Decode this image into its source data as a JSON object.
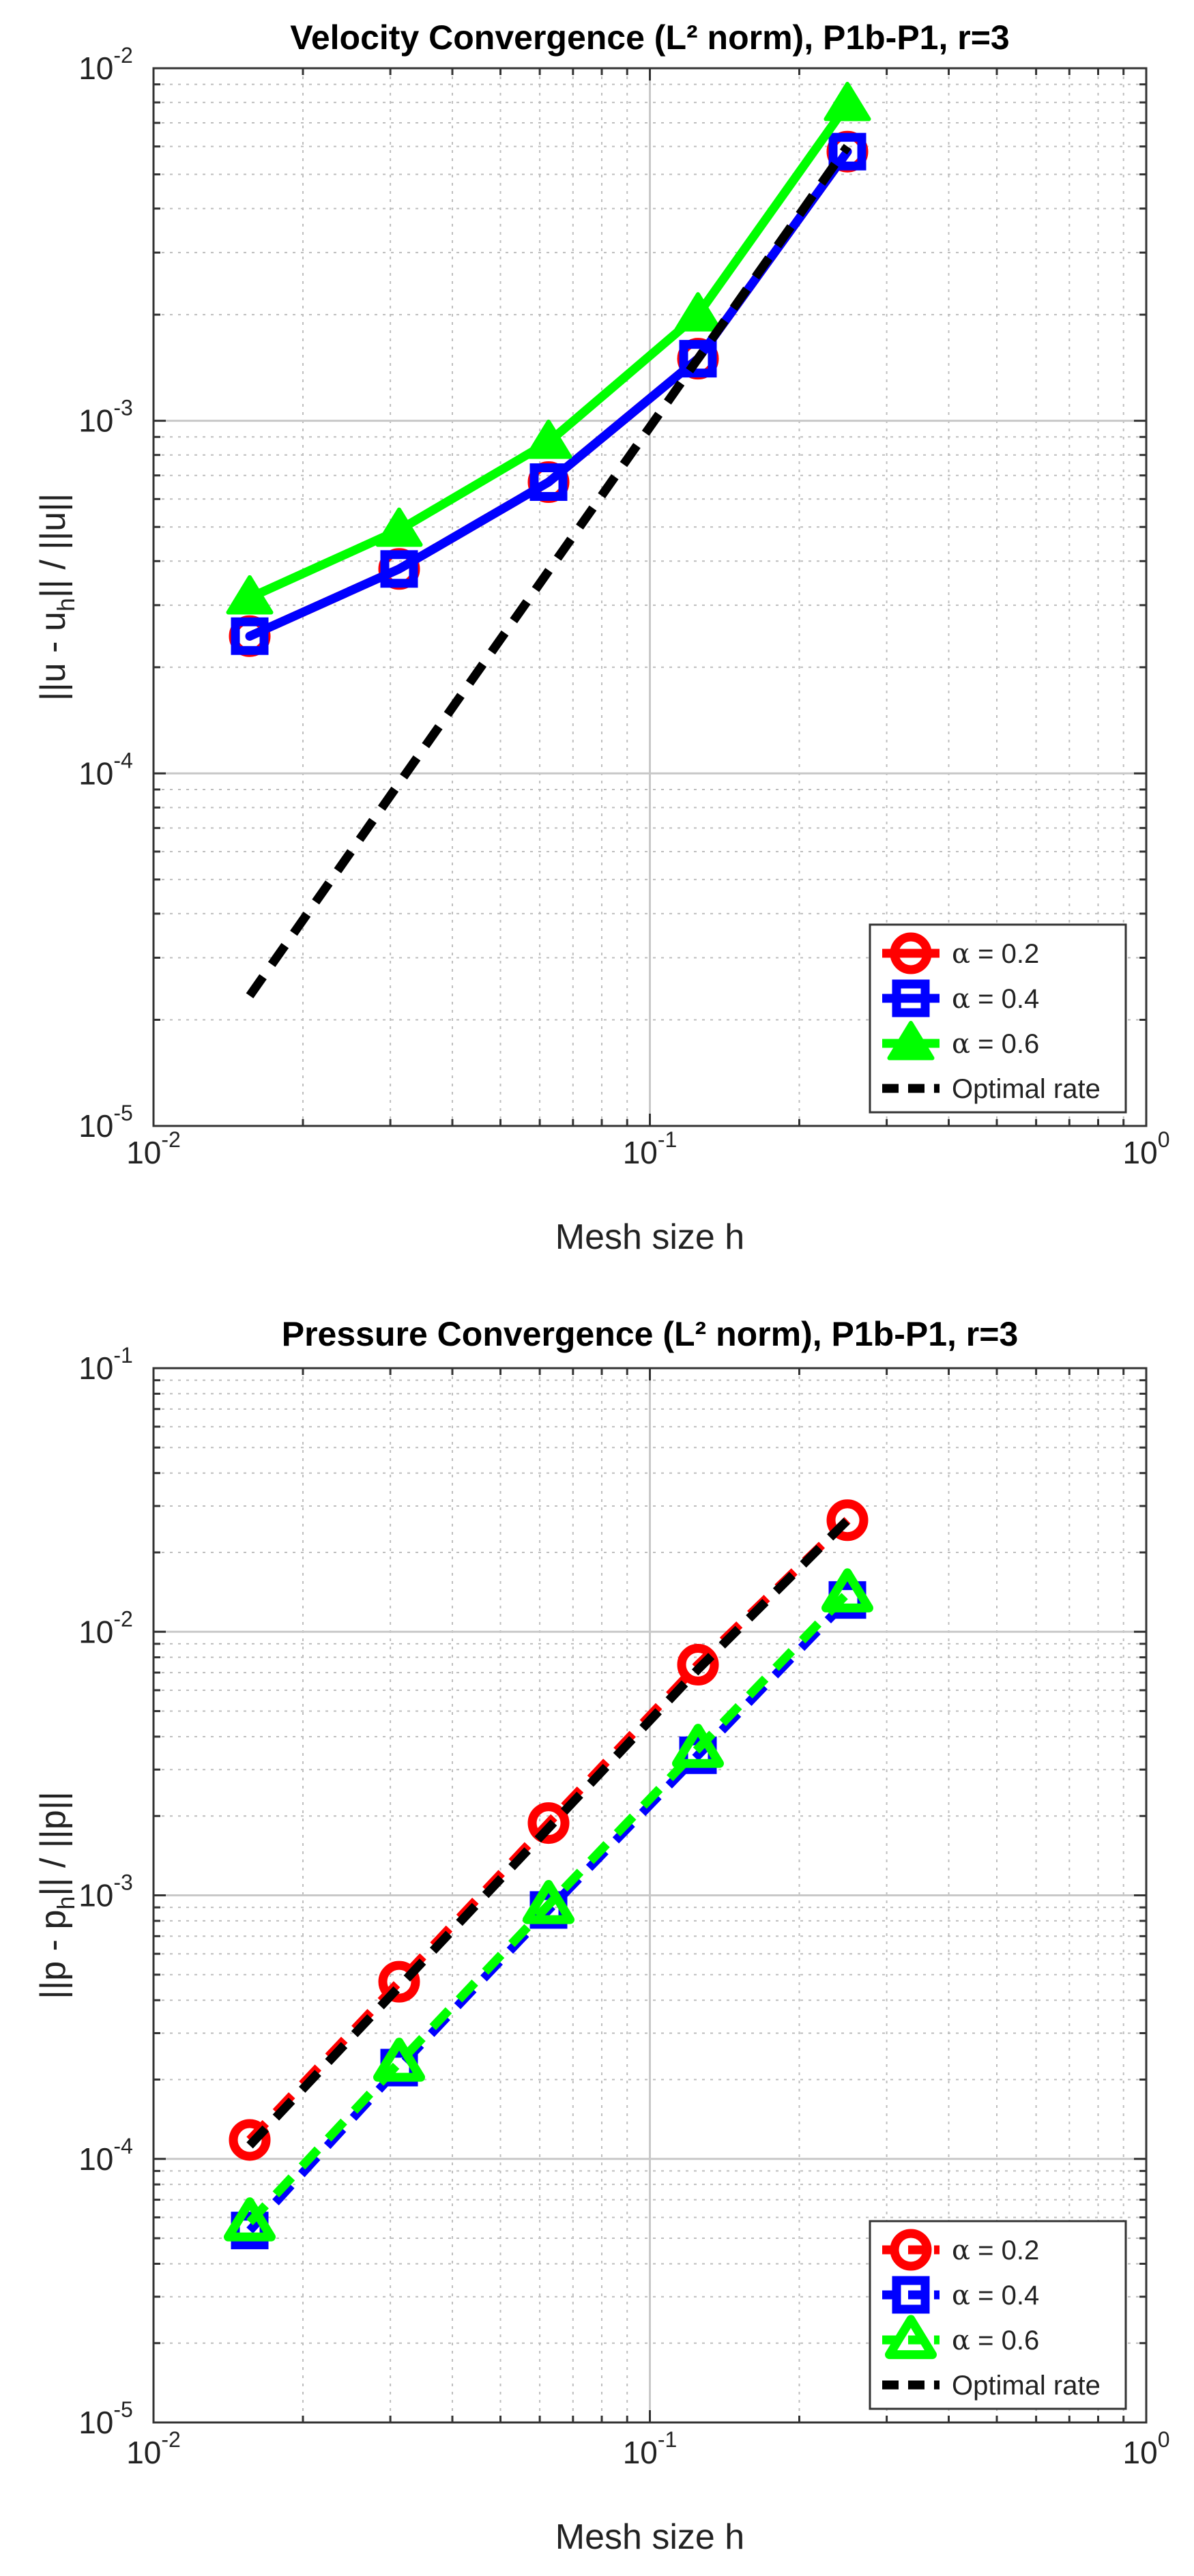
{
  "chart_data": [
    {
      "type": "line",
      "title": "Velocity Convergence (L² norm), P1b-P1, r=3",
      "xlabel": "Mesh size h",
      "ylabel": "||u - u_h|| / ||u||",
      "ylabel_parts": {
        "a": "||u - u",
        "sub": "h",
        "b": "|| / ||u||"
      },
      "xscale": "log",
      "yscale": "log",
      "xlim": [
        0.01,
        1
      ],
      "ylim": [
        1e-05,
        0.01
      ],
      "x_ticks": [
        {
          "base": "10",
          "exp": "-2"
        },
        {
          "base": "10",
          "exp": "-1"
        },
        {
          "base": "10",
          "exp": "0"
        }
      ],
      "y_ticks": [
        {
          "base": "10",
          "exp": "-5"
        },
        {
          "base": "10",
          "exp": "-4"
        },
        {
          "base": "10",
          "exp": "-3"
        },
        {
          "base": "10",
          "exp": "-2"
        }
      ],
      "grid": true,
      "legend_position": "bottom-right",
      "x": [
        0.015625,
        0.03125,
        0.0625,
        0.125,
        0.25
      ],
      "series": [
        {
          "name": "α = 0.2",
          "alpha_label": "α",
          "value_label": "= 0.2",
          "color": "#ff0000",
          "marker": "circle",
          "line": "solid",
          "values": [
            0.000245,
            0.00038,
            0.00067,
            0.0015,
            0.0058
          ]
        },
        {
          "name": "α = 0.4",
          "alpha_label": "α",
          "value_label": "= 0.4",
          "color": "#0000ff",
          "marker": "square",
          "line": "solid",
          "values": [
            0.000245,
            0.00038,
            0.00067,
            0.0015,
            0.0058
          ]
        },
        {
          "name": "α = 0.6",
          "alpha_label": "α",
          "value_label": "= 0.6",
          "color": "#00ff00",
          "marker": "triangle",
          "line": "solid",
          "filled": true,
          "values": [
            0.000315,
            0.00049,
            0.00087,
            0.002,
            0.0079
          ]
        },
        {
          "name": "Optimal rate",
          "alpha_label": "",
          "value_label": "Optimal rate",
          "color": "#000000",
          "marker": "none",
          "line": "dashed",
          "values": [
            2.34e-05,
            9.38e-05,
            0.000375,
            0.0015,
            0.006
          ]
        }
      ]
    },
    {
      "type": "line",
      "title": "Pressure  Convergence (L² norm), P1b-P1, r=3",
      "xlabel": "Mesh size h",
      "ylabel": "||p - p_h|| / ||p||",
      "ylabel_parts": {
        "a": "||p - p",
        "sub": "h",
        "b": "|| / ||p||"
      },
      "xscale": "log",
      "yscale": "log",
      "xlim": [
        0.01,
        1
      ],
      "ylim": [
        1e-05,
        0.1
      ],
      "x_ticks": [
        {
          "base": "10",
          "exp": "-2"
        },
        {
          "base": "10",
          "exp": "-1"
        },
        {
          "base": "10",
          "exp": "0"
        }
      ],
      "y_ticks": [
        {
          "base": "10",
          "exp": "-5"
        },
        {
          "base": "10",
          "exp": "-4"
        },
        {
          "base": "10",
          "exp": "-3"
        },
        {
          "base": "10",
          "exp": "-2"
        },
        {
          "base": "10",
          "exp": "-1"
        }
      ],
      "grid": true,
      "legend_position": "bottom-right",
      "x": [
        0.015625,
        0.03125,
        0.0625,
        0.125,
        0.25
      ],
      "series": [
        {
          "name": "α = 0.2",
          "alpha_label": "α",
          "value_label": "= 0.2",
          "color": "#ff0000",
          "marker": "circle",
          "line": "dashed",
          "values": [
            0.000118,
            0.00047,
            0.00188,
            0.0075,
            0.0265
          ]
        },
        {
          "name": "α = 0.4",
          "alpha_label": "α",
          "value_label": "= 0.4",
          "color": "#0000ff",
          "marker": "square",
          "line": "dashed",
          "values": [
            5.35e-05,
            0.000222,
            0.00088,
            0.0034,
            0.0132
          ]
        },
        {
          "name": "α = 0.6",
          "alpha_label": "α",
          "value_label": "= 0.6",
          "color": "#00ff00",
          "marker": "triangle",
          "line": "dashed",
          "filled": false,
          "values": [
            5.75e-05,
            0.000232,
            0.00092,
            0.0036,
            0.014
          ]
        },
        {
          "name": "Optimal rate",
          "alpha_label": "",
          "value_label": "Optimal rate",
          "color": "#000000",
          "marker": "none",
          "line": "dashed",
          "values": [
            0.0001125,
            0.00045,
            0.0018,
            0.0072,
            0.0265
          ]
        }
      ]
    }
  ]
}
